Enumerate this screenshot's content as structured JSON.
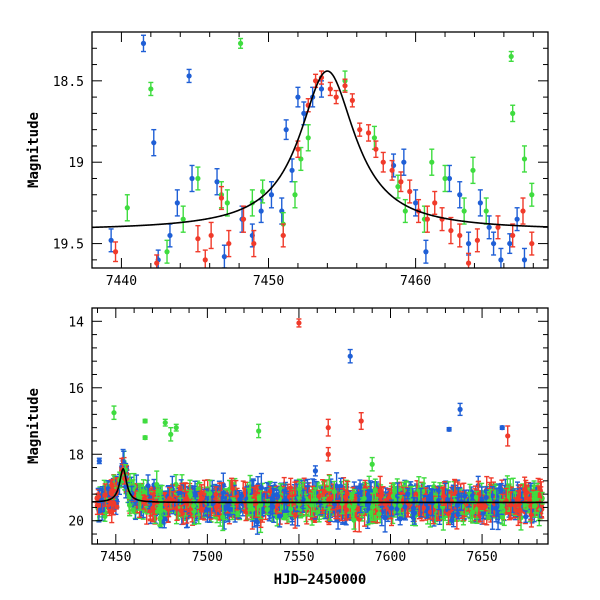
{
  "colors": {
    "blue": "#1f5fd6",
    "green": "#3fdc3f",
    "red": "#f03a2a",
    "axis": "#000000",
    "model": "#000000"
  },
  "chart_data": [
    {
      "type": "scatter",
      "title": "",
      "xlabel": "",
      "ylabel": "Magnitude",
      "xlim": [
        7438,
        7469
      ],
      "ylim": [
        19.65,
        18.2
      ],
      "y_inverted": true,
      "xticks": [
        7440,
        7450,
        7460
      ],
      "yticks": [
        18.5,
        19,
        19.5
      ],
      "model_curve": {
        "type": "lorentzian",
        "t0": 7454.0,
        "peak_mag": 18.44,
        "base_mag": 19.42,
        "width_days": 2.3
      },
      "series": [
        {
          "color": "blue",
          "points": [
            [
              7439.3,
              19.48,
              0.07
            ],
            [
              7441.5,
              18.27,
              0.05
            ],
            [
              7442.2,
              18.88,
              0.08
            ],
            [
              7442.5,
              19.6,
              0.06
            ],
            [
              7443.3,
              19.45,
              0.07
            ],
            [
              7443.8,
              19.25,
              0.08
            ],
            [
              7444.6,
              18.47,
              0.04
            ],
            [
              7444.8,
              19.1,
              0.08
            ],
            [
              7446.5,
              19.12,
              0.08
            ],
            [
              7447.0,
              19.58,
              0.07
            ],
            [
              7448.2,
              19.35,
              0.08
            ],
            [
              7448.9,
              19.45,
              0.07
            ],
            [
              7449.5,
              19.3,
              0.07
            ],
            [
              7450.2,
              19.2,
              0.08
            ],
            [
              7450.9,
              19.3,
              0.08
            ],
            [
              7451.2,
              18.8,
              0.06
            ],
            [
              7451.6,
              19.05,
              0.07
            ],
            [
              7452.0,
              18.6,
              0.06
            ],
            [
              7452.4,
              18.7,
              0.07
            ],
            [
              7453.0,
              18.6,
              0.06
            ],
            [
              7453.6,
              18.55,
              0.05
            ],
            [
              7458.5,
              19.02,
              0.07
            ],
            [
              7459.2,
              19.0,
              0.08
            ],
            [
              7460.0,
              19.25,
              0.08
            ],
            [
              7460.7,
              19.55,
              0.07
            ],
            [
              7462.3,
              19.1,
              0.08
            ],
            [
              7463.0,
              19.2,
              0.08
            ],
            [
              7463.6,
              19.5,
              0.07
            ],
            [
              7464.4,
              19.25,
              0.08
            ],
            [
              7465.0,
              19.4,
              0.07
            ],
            [
              7465.3,
              19.5,
              0.07
            ],
            [
              7465.8,
              19.6,
              0.07
            ],
            [
              7466.4,
              19.5,
              0.06
            ],
            [
              7466.9,
              19.35,
              0.07
            ],
            [
              7467.4,
              19.6,
              0.07
            ]
          ]
        },
        {
          "color": "green",
          "points": [
            [
              7440.4,
              19.28,
              0.08
            ],
            [
              7442.0,
              18.55,
              0.04
            ],
            [
              7443.1,
              19.55,
              0.07
            ],
            [
              7444.2,
              19.35,
              0.08
            ],
            [
              7445.2,
              19.1,
              0.07
            ],
            [
              7446.8,
              19.2,
              0.08
            ],
            [
              7447.2,
              19.25,
              0.08
            ],
            [
              7448.1,
              18.27,
              0.03
            ],
            [
              7448.9,
              19.25,
              0.08
            ],
            [
              7449.6,
              19.18,
              0.07
            ],
            [
              7451.0,
              19.38,
              0.07
            ],
            [
              7451.8,
              19.2,
              0.08
            ],
            [
              7452.2,
              18.98,
              0.07
            ],
            [
              7452.7,
              18.85,
              0.08
            ],
            [
              7455.2,
              18.5,
              0.06
            ],
            [
              7457.2,
              18.85,
              0.07
            ],
            [
              7458.8,
              19.15,
              0.07
            ],
            [
              7459.3,
              19.3,
              0.07
            ],
            [
              7460.6,
              19.35,
              0.08
            ],
            [
              7461.1,
              19.0,
              0.08
            ],
            [
              7462.0,
              19.1,
              0.08
            ],
            [
              7463.3,
              19.3,
              0.08
            ],
            [
              7463.9,
              19.05,
              0.08
            ],
            [
              7464.8,
              19.3,
              0.08
            ],
            [
              7466.5,
              18.35,
              0.03
            ],
            [
              7466.6,
              18.7,
              0.05
            ],
            [
              7467.4,
              18.98,
              0.08
            ],
            [
              7467.9,
              19.2,
              0.07
            ]
          ]
        },
        {
          "color": "red",
          "points": [
            [
              7439.6,
              19.55,
              0.06
            ],
            [
              7442.4,
              19.62,
              0.05
            ],
            [
              7445.2,
              19.47,
              0.08
            ],
            [
              7445.7,
              19.6,
              0.06
            ],
            [
              7446.1,
              19.45,
              0.08
            ],
            [
              7446.8,
              19.22,
              0.07
            ],
            [
              7447.3,
              19.5,
              0.08
            ],
            [
              7448.3,
              19.35,
              0.08
            ],
            [
              7449.0,
              19.5,
              0.08
            ],
            [
              7451.0,
              19.45,
              0.07
            ],
            [
              7452.0,
              18.92,
              0.05
            ],
            [
              7452.7,
              18.65,
              0.04
            ],
            [
              7453.2,
              18.5,
              0.04
            ],
            [
              7453.6,
              18.48,
              0.04
            ],
            [
              7454.2,
              18.55,
              0.04
            ],
            [
              7454.6,
              18.6,
              0.04
            ],
            [
              7455.2,
              18.53,
              0.04
            ],
            [
              7455.7,
              18.62,
              0.04
            ],
            [
              7456.2,
              18.8,
              0.04
            ],
            [
              7456.8,
              18.82,
              0.05
            ],
            [
              7457.3,
              18.92,
              0.05
            ],
            [
              7457.8,
              19.0,
              0.06
            ],
            [
              7458.4,
              19.05,
              0.06
            ],
            [
              7459.0,
              19.12,
              0.06
            ],
            [
              7459.6,
              19.18,
              0.07
            ],
            [
              7460.2,
              19.3,
              0.07
            ],
            [
              7460.8,
              19.35,
              0.08
            ],
            [
              7461.3,
              19.25,
              0.07
            ],
            [
              7461.8,
              19.35,
              0.07
            ],
            [
              7462.4,
              19.42,
              0.08
            ],
            [
              7463.0,
              19.45,
              0.07
            ],
            [
              7463.6,
              19.62,
              0.06
            ],
            [
              7464.2,
              19.48,
              0.07
            ],
            [
              7465.6,
              19.4,
              0.07
            ],
            [
              7466.6,
              19.45,
              0.07
            ],
            [
              7467.3,
              19.3,
              0.08
            ],
            [
              7467.9,
              19.5,
              0.07
            ]
          ]
        }
      ]
    },
    {
      "type": "scatter",
      "title": "",
      "xlabel": "HJD−2450000",
      "ylabel": "Magnitude",
      "xlim": [
        7437,
        7686
      ],
      "ylim": [
        20.7,
        13.6
      ],
      "y_inverted": true,
      "xticks": [
        7450,
        7500,
        7550,
        7600,
        7650
      ],
      "yticks": [
        14,
        16,
        18,
        20
      ],
      "model_curve": {
        "type": "lorentzian",
        "t0": 7454.0,
        "peak_mag": 18.44,
        "base_mag": 19.45,
        "width_days": 2.3
      },
      "dense_band": {
        "x_start": 7439,
        "x_end": 7683,
        "center_mag": 19.45,
        "spread_mag": 0.45
      },
      "outliers": [
        {
          "color": "red",
          "x": 7550,
          "y": 14.05,
          "err": 0.12
        },
        {
          "color": "blue",
          "x": 7578,
          "y": 15.05,
          "err": 0.2
        },
        {
          "color": "green",
          "x": 7449,
          "y": 16.75,
          "err": 0.2
        },
        {
          "color": "green",
          "x": 7466,
          "y": 17.0,
          "err": 0.05
        },
        {
          "color": "green",
          "x": 7477,
          "y": 17.05,
          "err": 0.1
        },
        {
          "color": "green",
          "x": 7480,
          "y": 17.4,
          "err": 0.2
        },
        {
          "color": "green",
          "x": 7483,
          "y": 17.2,
          "err": 0.1
        },
        {
          "color": "green",
          "x": 7466,
          "y": 17.5,
          "err": 0.05
        },
        {
          "color": "green",
          "x": 7528,
          "y": 17.3,
          "err": 0.2
        },
        {
          "color": "red",
          "x": 7566,
          "y": 17.2,
          "err": 0.25
        },
        {
          "color": "red",
          "x": 7584,
          "y": 17.0,
          "err": 0.25
        },
        {
          "color": "blue",
          "x": 7638,
          "y": 16.65,
          "err": 0.18
        },
        {
          "color": "red",
          "x": 7664,
          "y": 17.45,
          "err": 0.3
        },
        {
          "color": "blue",
          "x": 7632,
          "y": 17.25,
          "err": 0.05
        },
        {
          "color": "blue",
          "x": 7661,
          "y": 17.2,
          "err": 0.05
        },
        {
          "color": "blue",
          "x": 7441,
          "y": 18.2,
          "err": 0.08
        },
        {
          "color": "red",
          "x": 7566,
          "y": 18.0,
          "err": 0.2
        },
        {
          "color": "green",
          "x": 7590,
          "y": 18.3,
          "err": 0.2
        },
        {
          "color": "blue",
          "x": 7559,
          "y": 18.5,
          "err": 0.15
        }
      ]
    }
  ]
}
